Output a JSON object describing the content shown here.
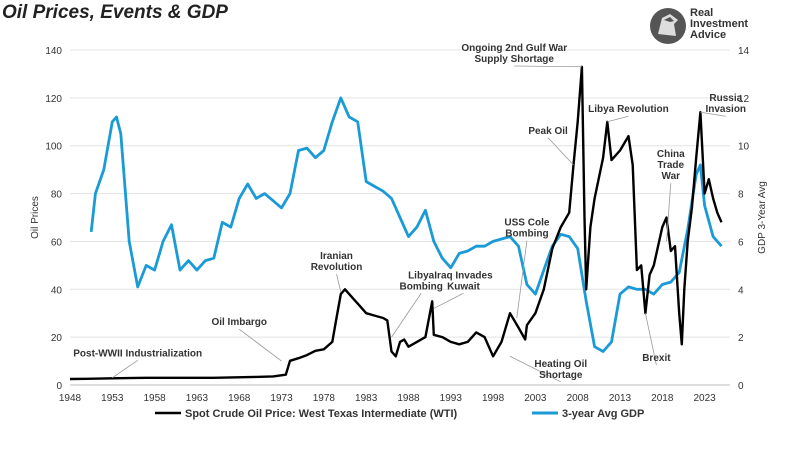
{
  "header": {
    "title": "Oil Prices, Events & GDP",
    "brand_line1": "Real",
    "brand_line2": "Investment",
    "brand_line3": "Advice",
    "brand_icon": "horse-head-logo"
  },
  "chart_data": {
    "type": "line",
    "title": "Oil Prices, Events & GDP",
    "x_axis": {
      "min": 1948,
      "max": 2026,
      "ticks": [
        1948,
        1953,
        1958,
        1963,
        1968,
        1973,
        1978,
        1983,
        1988,
        1993,
        1998,
        2003,
        2008,
        2013,
        2018,
        2023
      ]
    },
    "y_left": {
      "label": "Oil Prices",
      "min": 0,
      "max": 140,
      "ticks": [
        0,
        20,
        40,
        60,
        80,
        100,
        120,
        140
      ]
    },
    "y_right": {
      "label": "GDP 3-Year Avg",
      "min": 0,
      "max": 14,
      "ticks": [
        0,
        2,
        4,
        6,
        8,
        10,
        12,
        14
      ]
    },
    "grid": true,
    "legend_position": "bottom",
    "series": [
      {
        "name": "Spot Crude Oil Price: West Texas Intermediate (WTI)",
        "color": "#000000",
        "axis": "left",
        "points": [
          [
            1948,
            2.5
          ],
          [
            1950,
            2.6
          ],
          [
            1953,
            2.8
          ],
          [
            1957,
            3.0
          ],
          [
            1960,
            3.0
          ],
          [
            1965,
            3.0
          ],
          [
            1970,
            3.4
          ],
          [
            1972,
            3.6
          ],
          [
            1973.5,
            4.3
          ],
          [
            1974,
            10.1
          ],
          [
            1975,
            11.2
          ],
          [
            1976,
            12.5
          ],
          [
            1977,
            14.3
          ],
          [
            1978,
            14.9
          ],
          [
            1979,
            18
          ],
          [
            1979.5,
            28
          ],
          [
            1980,
            38
          ],
          [
            1980.5,
            40
          ],
          [
            1981,
            38
          ],
          [
            1981.5,
            36
          ],
          [
            1982,
            34
          ],
          [
            1983,
            30
          ],
          [
            1984,
            29
          ],
          [
            1985,
            28
          ],
          [
            1985.5,
            27
          ],
          [
            1986,
            14
          ],
          [
            1986.5,
            12
          ],
          [
            1987,
            18
          ],
          [
            1987.5,
            19
          ],
          [
            1988,
            16
          ],
          [
            1989,
            18
          ],
          [
            1990,
            20
          ],
          [
            1990.8,
            35
          ],
          [
            1991,
            21
          ],
          [
            1992,
            20
          ],
          [
            1993,
            18
          ],
          [
            1994,
            17
          ],
          [
            1995,
            18
          ],
          [
            1996,
            22
          ],
          [
            1997,
            20
          ],
          [
            1998,
            12
          ],
          [
            1999,
            18
          ],
          [
            2000,
            30
          ],
          [
            2001,
            24
          ],
          [
            2001.8,
            19
          ],
          [
            2002,
            25
          ],
          [
            2003,
            30
          ],
          [
            2004,
            40
          ],
          [
            2005,
            57
          ],
          [
            2006,
            66
          ],
          [
            2007,
            72
          ],
          [
            2007.5,
            92
          ],
          [
            2008,
            110
          ],
          [
            2008.5,
            133
          ],
          [
            2008.8,
            70
          ],
          [
            2009,
            40
          ],
          [
            2009.5,
            66
          ],
          [
            2010,
            78
          ],
          [
            2011,
            95
          ],
          [
            2011.5,
            110
          ],
          [
            2012,
            94
          ],
          [
            2013,
            98
          ],
          [
            2014,
            104
          ],
          [
            2014.5,
            92
          ],
          [
            2015,
            48
          ],
          [
            2015.5,
            50
          ],
          [
            2016,
            30
          ],
          [
            2016.5,
            46
          ],
          [
            2017,
            50
          ],
          [
            2018,
            66
          ],
          [
            2018.5,
            70
          ],
          [
            2019,
            56
          ],
          [
            2019.5,
            58
          ],
          [
            2020,
            30
          ],
          [
            2020.3,
            17
          ],
          [
            2020.6,
            40
          ],
          [
            2021,
            60
          ],
          [
            2021.5,
            74
          ],
          [
            2022,
            95
          ],
          [
            2022.5,
            114
          ],
          [
            2023,
            80
          ],
          [
            2023.5,
            86
          ],
          [
            2024,
            78
          ],
          [
            2024.5,
            72
          ],
          [
            2025,
            68
          ]
        ]
      },
      {
        "name": "3-year Avg GDP",
        "color": "#1a9ad6",
        "axis": "right",
        "points": [
          [
            1950.5,
            6.4
          ],
          [
            1951,
            8
          ],
          [
            1952,
            9
          ],
          [
            1953,
            11.0
          ],
          [
            1953.5,
            11.2
          ],
          [
            1954,
            10.5
          ],
          [
            1955,
            6
          ],
          [
            1956,
            4.1
          ],
          [
            1957,
            5
          ],
          [
            1958,
            4.8
          ],
          [
            1959,
            6
          ],
          [
            1960,
            6.7
          ],
          [
            1961,
            4.8
          ],
          [
            1962,
            5.2
          ],
          [
            1963,
            4.8
          ],
          [
            1964,
            5.2
          ],
          [
            1965,
            5.3
          ],
          [
            1966,
            6.8
          ],
          [
            1967,
            6.6
          ],
          [
            1968,
            7.8
          ],
          [
            1969,
            8.4
          ],
          [
            1970,
            7.8
          ],
          [
            1971,
            8
          ],
          [
            1972,
            7.7
          ],
          [
            1973,
            7.4
          ],
          [
            1974,
            8
          ],
          [
            1975,
            9.8
          ],
          [
            1976,
            9.9
          ],
          [
            1977,
            9.5
          ],
          [
            1978,
            9.8
          ],
          [
            1979,
            11
          ],
          [
            1980,
            12
          ],
          [
            1981,
            11.2
          ],
          [
            1982,
            11
          ],
          [
            1983,
            8.5
          ],
          [
            1984,
            8.3
          ],
          [
            1985,
            8.1
          ],
          [
            1986,
            7.8
          ],
          [
            1987,
            7
          ],
          [
            1988,
            6.2
          ],
          [
            1989,
            6.6
          ],
          [
            1990,
            7.3
          ],
          [
            1991,
            6
          ],
          [
            1992,
            5.3
          ],
          [
            1993,
            4.9
          ],
          [
            1994,
            5.5
          ],
          [
            1995,
            5.6
          ],
          [
            1996,
            5.8
          ],
          [
            1997,
            5.8
          ],
          [
            1998,
            6.0
          ],
          [
            1999,
            6.1
          ],
          [
            2000,
            6.2
          ],
          [
            2001,
            5.8
          ],
          [
            2002,
            4.2
          ],
          [
            2003,
            3.8
          ],
          [
            2004,
            4.8
          ],
          [
            2005,
            5.8
          ],
          [
            2006,
            6.3
          ],
          [
            2007,
            6.2
          ],
          [
            2008,
            5.7
          ],
          [
            2009,
            3.5
          ],
          [
            2010,
            1.6
          ],
          [
            2011,
            1.4
          ],
          [
            2012,
            1.8
          ],
          [
            2013,
            3.8
          ],
          [
            2014,
            4.1
          ],
          [
            2015,
            4.0
          ],
          [
            2016,
            4.0
          ],
          [
            2017,
            3.8
          ],
          [
            2018,
            4.2
          ],
          [
            2019,
            4.3
          ],
          [
            2020,
            4.7
          ],
          [
            2021,
            6.5
          ],
          [
            2022,
            8.8
          ],
          [
            2022.5,
            9.2
          ],
          [
            2023,
            7.5
          ],
          [
            2024,
            6.2
          ],
          [
            2025,
            5.8
          ]
        ]
      }
    ],
    "annotations": [
      {
        "lines": [
          "Post-WWII Industrialization"
        ],
        "year": 1953,
        "value": 3,
        "label_year": 1956,
        "label_value": 12
      },
      {
        "lines": [
          "Oil Imbargo"
        ],
        "year": 1973,
        "value": 10,
        "label_year": 1968,
        "label_value": 25
      },
      {
        "lines": [
          "Iranian",
          "Revolution"
        ],
        "year": 1980,
        "value": 39,
        "label_year": 1979.5,
        "label_value": 48
      },
      {
        "lines": [
          "Libya",
          "Bombing"
        ],
        "year": 1986,
        "value": 20,
        "label_year": 1989.5,
        "label_value": 40
      },
      {
        "lines": [
          "Iraq Invades",
          "Kuwait"
        ],
        "year": 1991,
        "value": 32,
        "label_year": 1994.5,
        "label_value": 40
      },
      {
        "lines": [
          "USS Cole",
          "Bombing"
        ],
        "year": 2000.8,
        "value": 28,
        "label_year": 2002,
        "label_value": 62
      },
      {
        "lines": [
          "Heating Oil",
          "Shortage"
        ],
        "year": 2000,
        "value": 12,
        "label_year": 2006,
        "label_value": 3
      },
      {
        "lines": [
          "Ongoing 2nd Gulf War",
          "Supply Shortage"
        ],
        "year": 2008.5,
        "value": 133,
        "label_year": 2000.5,
        "label_value": 135
      },
      {
        "lines": [
          "Peak Oil"
        ],
        "year": 2007.5,
        "value": 92,
        "label_year": 2004.5,
        "label_value": 105
      },
      {
        "lines": [
          "Libya Revolution"
        ],
        "year": 2011.5,
        "value": 110,
        "label_year": 2014,
        "label_value": 114
      },
      {
        "lines": [
          "Brexit"
        ],
        "year": 2016,
        "value": 30,
        "label_year": 2017.3,
        "label_value": 10
      },
      {
        "lines": [
          "China",
          "Trade",
          "War"
        ],
        "year": 2018.5,
        "value": 60,
        "label_year": 2019,
        "label_value": 86
      },
      {
        "lines": [
          "Russia",
          "Invasion"
        ],
        "year": 2022.5,
        "value": 114,
        "label_year": 2025.5,
        "label_value": 114
      }
    ]
  }
}
